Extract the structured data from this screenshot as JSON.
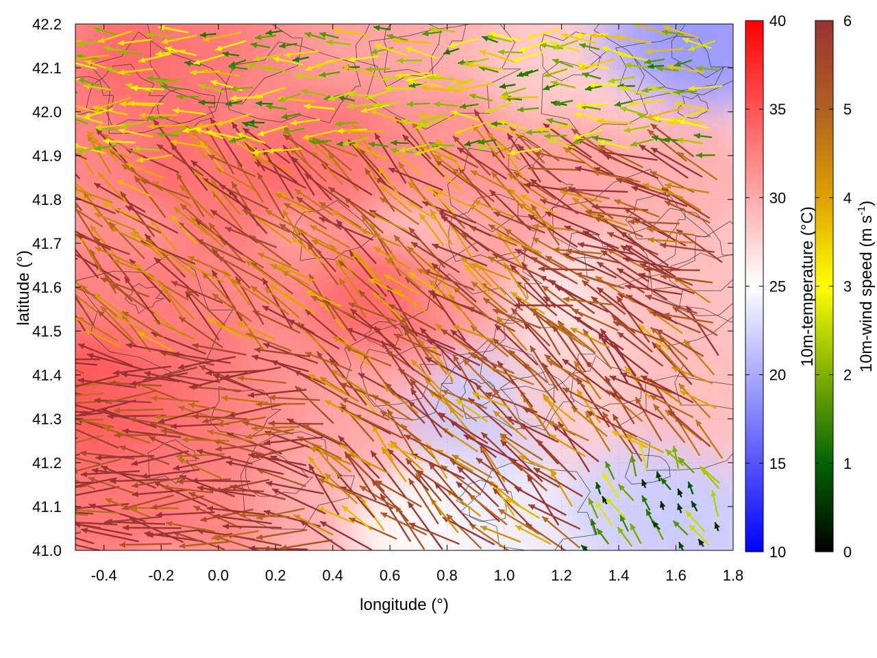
{
  "chart_data": {
    "type": "vector-field-heatmap",
    "xlabel": "longitude (°)",
    "ylabel": "latitude (°)",
    "xlim": [
      -0.5,
      1.8
    ],
    "ylim": [
      41.0,
      42.2
    ],
    "x_ticks": [
      -0.4,
      -0.2,
      0.0,
      0.2,
      0.4,
      0.6,
      0.8,
      1.0,
      1.2,
      1.4,
      1.6,
      1.8
    ],
    "x_tick_labels": [
      "-0.4",
      "-0.2",
      "0.0",
      "0.2",
      "0.4",
      "0.6",
      "0.8",
      "1.0",
      "1.2",
      "1.4",
      "1.6",
      "1.8"
    ],
    "y_ticks": [
      41.0,
      41.1,
      41.2,
      41.3,
      41.4,
      41.5,
      41.6,
      41.7,
      41.8,
      41.9,
      42.0,
      42.1,
      42.2
    ],
    "y_tick_labels": [
      "41.0",
      "41.1",
      "41.2",
      "41.3",
      "41.4",
      "41.5",
      "41.6",
      "41.7",
      "41.8",
      "41.9",
      "42.0",
      "42.1",
      "42.2"
    ],
    "grid": true,
    "temperature_colorbar": {
      "label": "10m-temperature (°C)",
      "range": [
        10,
        40
      ],
      "ticks": [
        10,
        15,
        20,
        25,
        30,
        35,
        40
      ],
      "tick_labels": [
        "10",
        "15",
        "20",
        "25",
        "30",
        "35",
        "40"
      ],
      "colors": [
        "#0000ff",
        "#ffffff",
        "#ff0000"
      ]
    },
    "wind_colorbar": {
      "label": "10m-wind speed (m s-1)",
      "label_main": "10m-wind speed (m s",
      "label_sup": "-1",
      "label_end": ")",
      "range": [
        0,
        6
      ],
      "ticks": [
        0,
        1,
        2,
        3,
        4,
        5,
        6
      ],
      "tick_labels": [
        "0",
        "1",
        "2",
        "3",
        "4",
        "5",
        "6"
      ],
      "colors": [
        "#000000",
        "#006400",
        "#7fb000",
        "#ffff00",
        "#e0a000",
        "#b06020",
        "#993333"
      ]
    },
    "temperature_field": [
      {
        "lon": -0.45,
        "lat": 42.15,
        "t": 33
      },
      {
        "lon": -0.2,
        "lat": 42.1,
        "t": 34
      },
      {
        "lon": 0.1,
        "lat": 42.15,
        "t": 33
      },
      {
        "lon": 0.5,
        "lat": 42.15,
        "t": 31
      },
      {
        "lon": 0.9,
        "lat": 42.15,
        "t": 30
      },
      {
        "lon": 1.2,
        "lat": 42.12,
        "t": 28
      },
      {
        "lon": 1.6,
        "lat": 42.18,
        "t": 20
      },
      {
        "lon": 1.75,
        "lat": 42.15,
        "t": 19
      },
      {
        "lon": -0.4,
        "lat": 41.9,
        "t": 33
      },
      {
        "lon": 0.0,
        "lat": 41.85,
        "t": 34
      },
      {
        "lon": 0.4,
        "lat": 41.9,
        "t": 34
      },
      {
        "lon": 0.8,
        "lat": 41.9,
        "t": 32
      },
      {
        "lon": 1.2,
        "lat": 41.85,
        "t": 31
      },
      {
        "lon": 1.6,
        "lat": 41.85,
        "t": 30
      },
      {
        "lon": -0.4,
        "lat": 41.6,
        "t": 33
      },
      {
        "lon": 0.0,
        "lat": 41.6,
        "t": 33
      },
      {
        "lon": 0.4,
        "lat": 41.6,
        "t": 32
      },
      {
        "lon": 0.6,
        "lat": 41.55,
        "t": 34
      },
      {
        "lon": 1.0,
        "lat": 41.6,
        "t": 31
      },
      {
        "lon": 1.3,
        "lat": 41.55,
        "t": 26
      },
      {
        "lon": 1.6,
        "lat": 41.6,
        "t": 29
      },
      {
        "lon": -0.45,
        "lat": 41.35,
        "t": 36
      },
      {
        "lon": -0.1,
        "lat": 41.35,
        "t": 34
      },
      {
        "lon": 0.3,
        "lat": 41.35,
        "t": 32
      },
      {
        "lon": 0.6,
        "lat": 41.3,
        "t": 30
      },
      {
        "lon": 0.95,
        "lat": 41.3,
        "t": 22
      },
      {
        "lon": 1.3,
        "lat": 41.35,
        "t": 28
      },
      {
        "lon": 1.7,
        "lat": 41.35,
        "t": 29
      },
      {
        "lon": -0.4,
        "lat": 41.1,
        "t": 34
      },
      {
        "lon": 0.0,
        "lat": 41.1,
        "t": 33
      },
      {
        "lon": 0.4,
        "lat": 41.1,
        "t": 30
      },
      {
        "lon": 0.75,
        "lat": 41.05,
        "t": 25
      },
      {
        "lon": 1.1,
        "lat": 41.05,
        "t": 24
      },
      {
        "lon": 1.5,
        "lat": 41.1,
        "t": 22
      },
      {
        "lon": 1.75,
        "lat": 41.05,
        "t": 22
      }
    ],
    "wind_regimes": [
      {
        "region": "west (lon -0.5 to 0.4, lat 41.0 to 41.45)",
        "direction_deg_from_east": 175,
        "speed": 6
      },
      {
        "region": "central (lon 0.4 to 1.2, lat 41.45 to 41.9)",
        "direction_deg_from_east": 140,
        "speed": 5
      },
      {
        "region": "north (lat 41.9 to 42.2)",
        "direction_deg_from_east": 180,
        "speed": 2.5
      },
      {
        "region": "south-east (lon 1.3 to 1.8, lat 41.0 to 41.2)",
        "direction_deg_from_east": 120,
        "speed": 1.5
      },
      {
        "region": "east (lon 1.2 to 1.8, lat 41.5 to 41.9)",
        "direction_deg_from_east": 160,
        "speed": 5.5
      }
    ]
  }
}
